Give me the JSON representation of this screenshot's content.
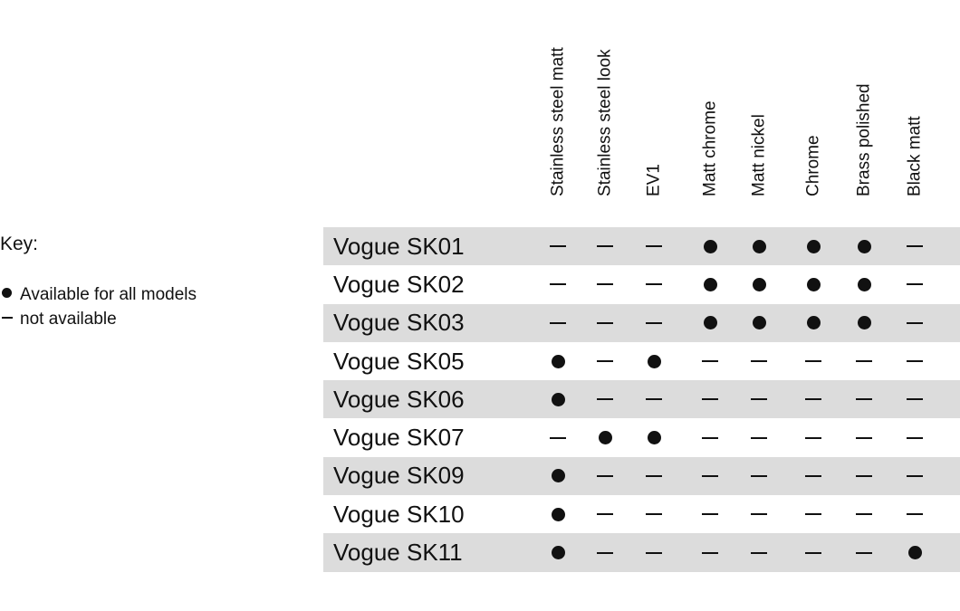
{
  "key": {
    "title": "Key:",
    "items": [
      {
        "symbol": "dot",
        "label": "Available for all models"
      },
      {
        "symbol": "dash",
        "label": "not available"
      }
    ]
  },
  "columns": [
    "Stainless steel matt",
    "Stainless steel look",
    "EV1",
    "Matt chrome",
    "Matt nickel",
    "Chrome",
    "Brass polished",
    "Black matt"
  ],
  "rows": [
    {
      "label": "Vogue SK01",
      "values": [
        "–",
        "–",
        "–",
        "●",
        "●",
        "●",
        "●",
        "–"
      ]
    },
    {
      "label": "Vogue SK02",
      "values": [
        "–",
        "–",
        "–",
        "●",
        "●",
        "●",
        "●",
        "–"
      ]
    },
    {
      "label": "Vogue SK03",
      "values": [
        "–",
        "–",
        "–",
        "●",
        "●",
        "●",
        "●",
        "–"
      ]
    },
    {
      "label": "Vogue SK05",
      "values": [
        "●",
        "–",
        "●",
        "–",
        "–",
        "–",
        "–",
        "–"
      ]
    },
    {
      "label": "Vogue SK06",
      "values": [
        "●",
        "–",
        "–",
        "–",
        "–",
        "–",
        "–",
        "–"
      ]
    },
    {
      "label": "Vogue SK07",
      "values": [
        "–",
        "●",
        "●",
        "–",
        "–",
        "–",
        "–",
        "–"
      ]
    },
    {
      "label": "Vogue SK09",
      "values": [
        "●",
        "–",
        "–",
        "–",
        "–",
        "–",
        "–",
        "–"
      ]
    },
    {
      "label": "Vogue SK10",
      "values": [
        "●",
        "–",
        "–",
        "–",
        "–",
        "–",
        "–",
        "–"
      ]
    },
    {
      "label": "Vogue SK11",
      "values": [
        "●",
        "–",
        "–",
        "–",
        "–",
        "–",
        "–",
        "●"
      ]
    }
  ],
  "colors": {
    "row_shade": "#dcdcdc",
    "text": "#111111"
  }
}
